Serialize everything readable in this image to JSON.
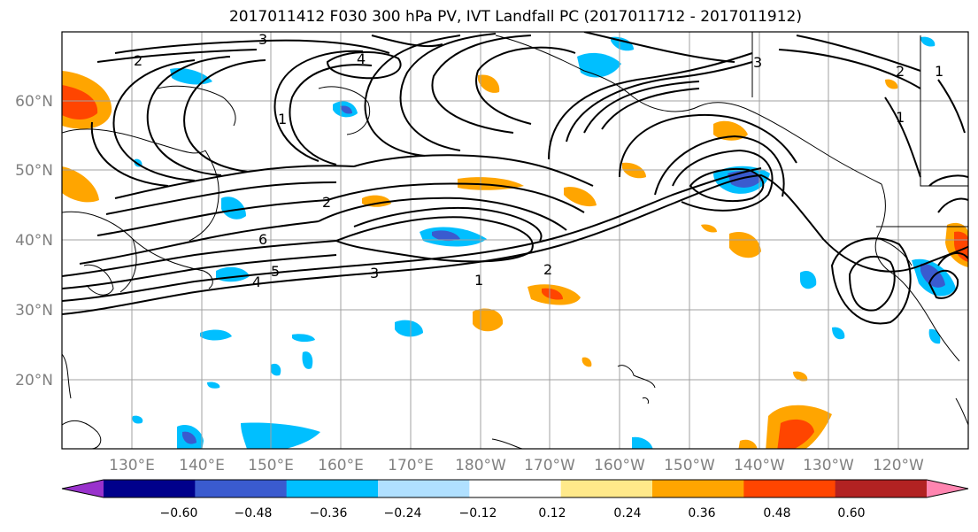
{
  "title": "2017011412 F030 300 hPa PV, IVT Landfall PC (2017011712 - 2017011912)",
  "lat_labels": [
    "60°N",
    "50°N",
    "40°N",
    "30°N",
    "20°N"
  ],
  "lon_labels": [
    "130°E",
    "140°E",
    "150°E",
    "160°E",
    "170°E",
    "180°W",
    "170°W",
    "160°W",
    "150°W",
    "140°W",
    "130°W",
    "120°W"
  ],
  "colorbar": {
    "colors": [
      "#9932CC",
      "#00008B",
      "#3A5BCF",
      "#00BFFF",
      "#B0E0FF",
      "#FFFFFF",
      "#FFE98A",
      "#FFA500",
      "#FF4500",
      "#B22222",
      "#FF85B0"
    ],
    "tick_labels": [
      "−0.60",
      "−0.48",
      "−0.36",
      "−0.24",
      "−0.12",
      "0.12",
      "0.24",
      "0.36",
      "0.48",
      "0.60"
    ]
  },
  "contour_labels": [
    "3",
    "2",
    "4",
    "2",
    "1",
    "2",
    "6",
    "4",
    "5",
    "1",
    "3",
    "2",
    "1",
    "3",
    "1"
  ],
  "colors": {
    "positive": "#FFA500",
    "positive_strong": "#FF4500",
    "negative": "#00BFFF",
    "negative_strong": "#3A5BCF",
    "grid": "#a0a0a0"
  }
}
